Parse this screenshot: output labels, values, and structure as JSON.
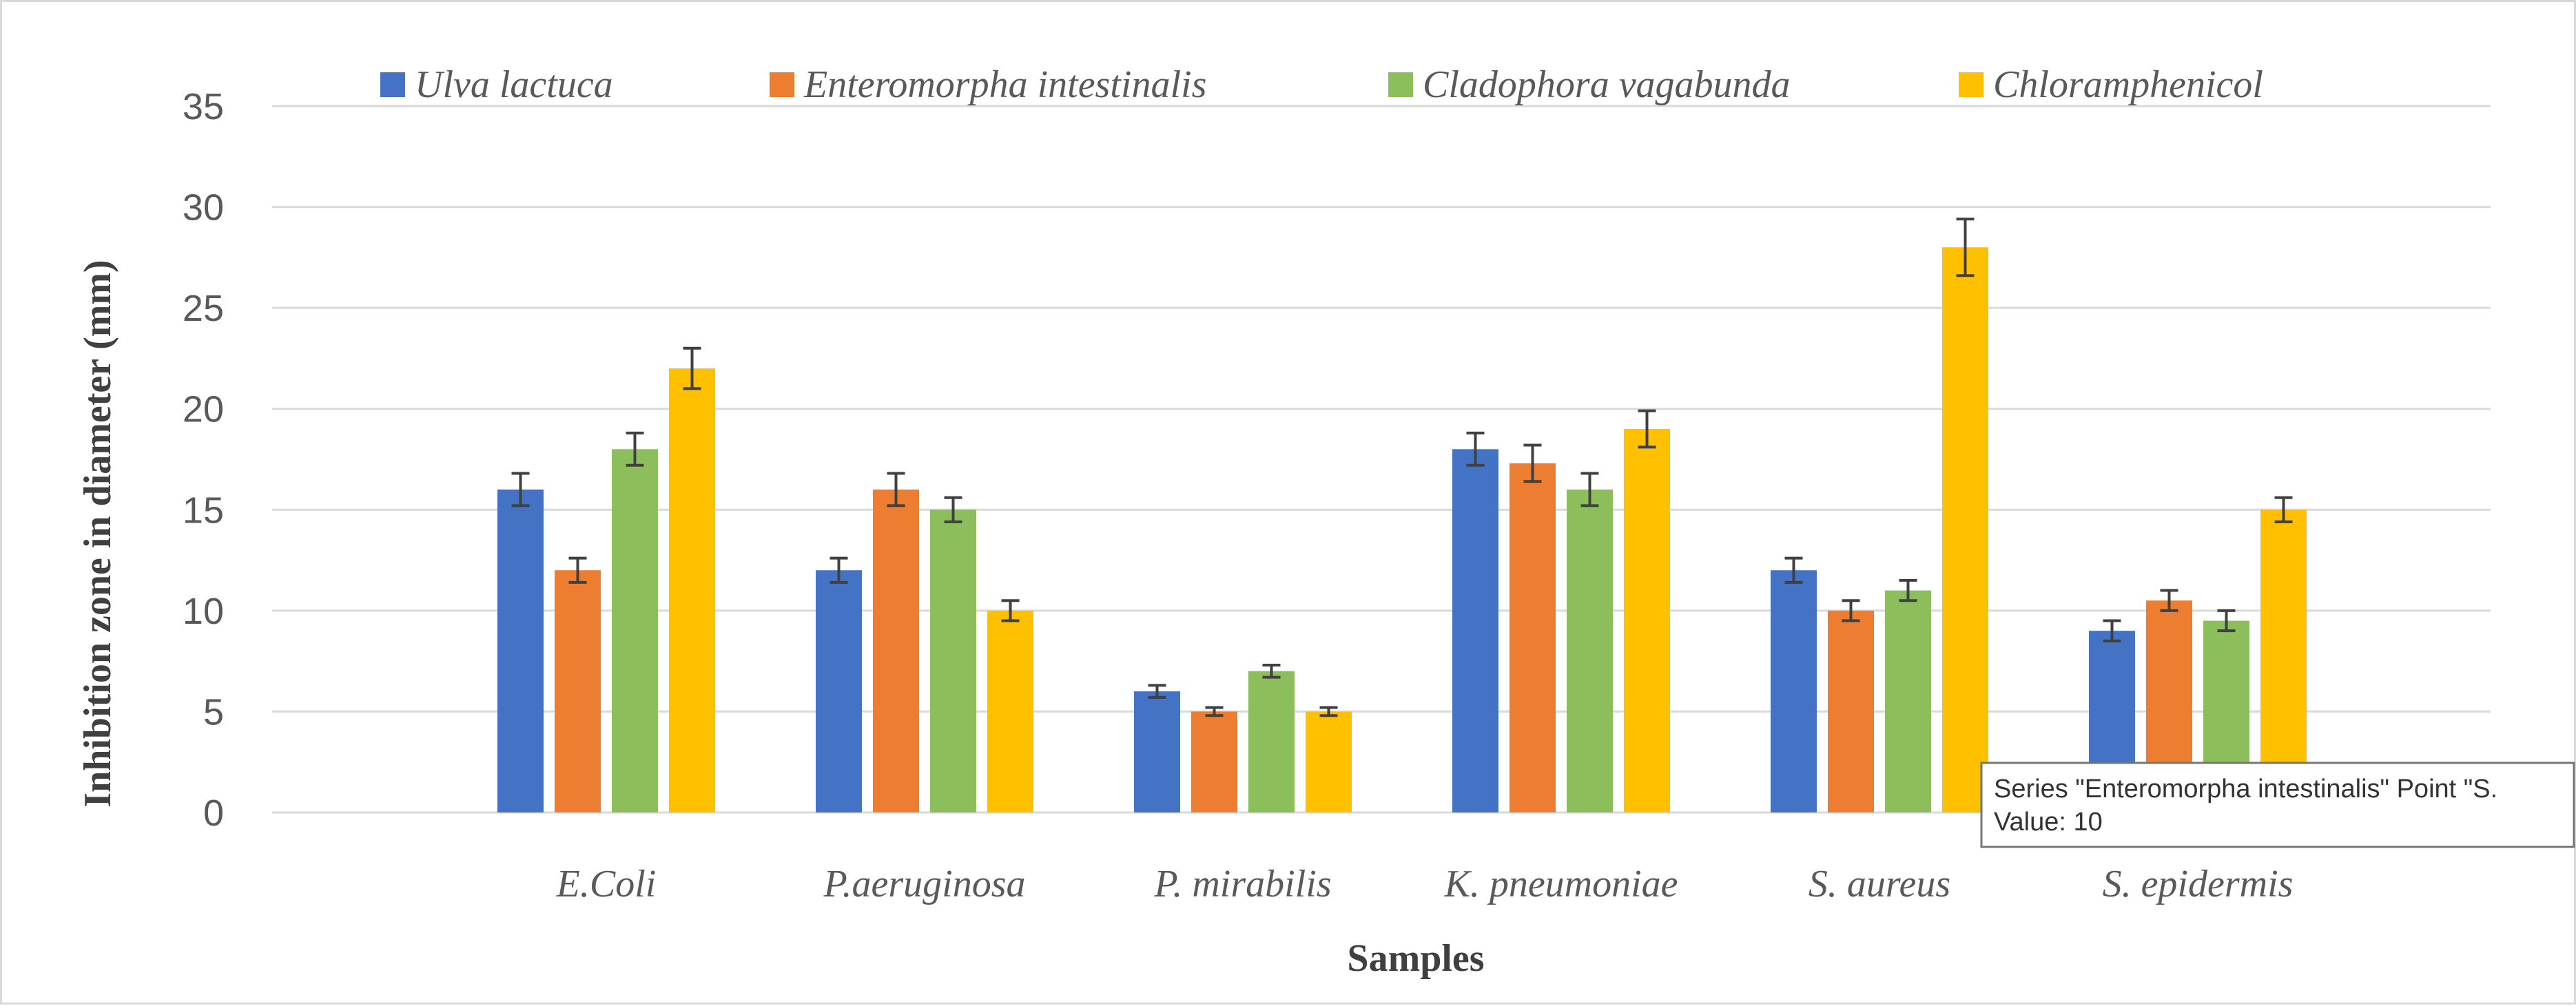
{
  "chart_data": {
    "type": "bar",
    "title": "",
    "xlabel": "Samples",
    "ylabel": "Inhibition zone in diameter (mm)",
    "ylim": [
      0,
      35
    ],
    "yticks": [
      "0",
      "5",
      "10",
      "15",
      "20",
      "25",
      "30",
      "35"
    ],
    "grid": true,
    "legend_position": "top",
    "categories": [
      "E.Coli",
      "P.aeruginosa",
      "P. mirabilis",
      "K. pneumoniae",
      "S. aureus",
      "S. epidermis"
    ],
    "series": [
      {
        "name": "Ulva lactuca",
        "color": "#4472C4",
        "values": [
          16,
          12,
          6,
          18,
          12,
          9
        ],
        "errors": [
          0.8,
          0.6,
          0.3,
          0.8,
          0.6,
          0.5
        ]
      },
      {
        "name": "Enteromorpha intestinalis",
        "color": "#ED7D31",
        "values": [
          12,
          16,
          5,
          17.3,
          10,
          10.5
        ],
        "errors": [
          0.6,
          0.8,
          0.2,
          0.9,
          0.5,
          0.5
        ]
      },
      {
        "name": "Cladophora vagabunda",
        "color": "#8CBF5C",
        "values": [
          18,
          15,
          7,
          16,
          11,
          9.5
        ],
        "errors": [
          0.8,
          0.6,
          0.3,
          0.8,
          0.5,
          0.5
        ]
      },
      {
        "name": "Chloramphenicol",
        "color": "#FFC000",
        "values": [
          22,
          10,
          5,
          19,
          28,
          15
        ],
        "errors": [
          1.0,
          0.5,
          0.2,
          0.9,
          1.4,
          0.6
        ]
      }
    ]
  },
  "tooltip": {
    "line1": "Series \"Enteromorpha intestinalis\" Point \"S.",
    "line2": "Value: 10"
  },
  "colors": {
    "grid": "#D9D9D9",
    "axis_text": "#595959",
    "label_text": "#404040",
    "error_bar": "#404040",
    "border": "#D9D9D9"
  }
}
